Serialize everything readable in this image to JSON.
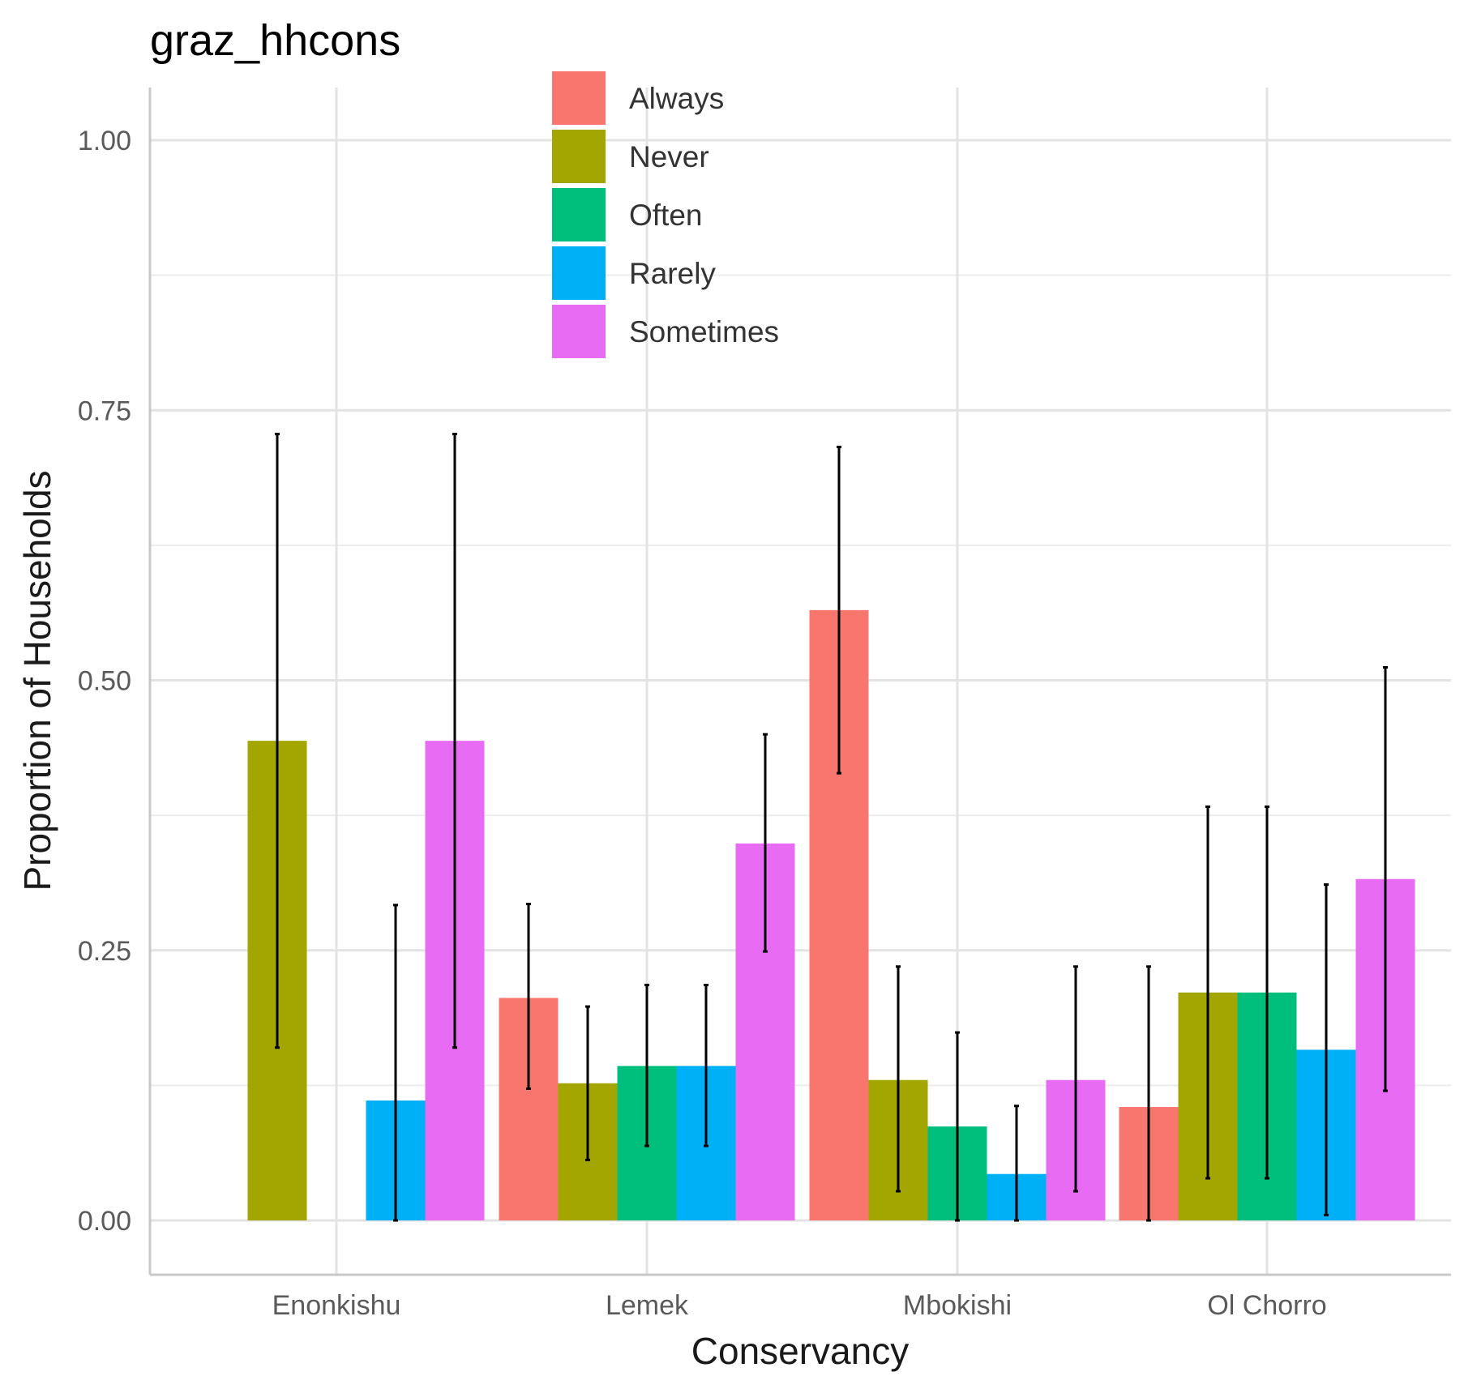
{
  "chart_data": {
    "type": "bar",
    "title": "graz_hhcons",
    "xlabel": "Conservancy",
    "ylabel": "Proportion of Households",
    "categories": [
      "Enonkishu",
      "Lemek",
      "Mbokishi",
      "Ol Chorro"
    ],
    "yticks": [
      "0.00",
      "0.25",
      "0.50",
      "0.75",
      "1.00"
    ],
    "ylim": [
      -0.05,
      1.05
    ],
    "grid": true,
    "legend_position": "top-center",
    "series": [
      {
        "name": "Always",
        "color": "#F8766D",
        "values": [
          null,
          0.206,
          0.565,
          0.105
        ],
        "error_low": [
          null,
          0.122,
          0.414,
          0.0
        ],
        "error_high": [
          null,
          0.293,
          0.716,
          0.235
        ]
      },
      {
        "name": "Never",
        "color": "#A3A500",
        "values": [
          0.444,
          0.127,
          0.13,
          0.211
        ],
        "error_low": [
          0.16,
          0.056,
          0.027,
          0.039
        ],
        "error_high": [
          0.728,
          0.198,
          0.235,
          0.383
        ]
      },
      {
        "name": "Often",
        "color": "#00BF7D",
        "values": [
          null,
          0.143,
          0.087,
          0.211
        ],
        "error_low": [
          null,
          0.069,
          0.0,
          0.039
        ],
        "error_high": [
          null,
          0.218,
          0.174,
          0.383
        ]
      },
      {
        "name": "Rarely",
        "color": "#00B0F6",
        "values": [
          0.111,
          0.143,
          0.043,
          0.158
        ],
        "error_low": [
          0.0,
          0.069,
          0.0,
          0.005
        ],
        "error_high": [
          0.292,
          0.218,
          0.106,
          0.311
        ]
      },
      {
        "name": "Sometimes",
        "color": "#E76BF3",
        "values": [
          0.444,
          0.349,
          0.13,
          0.316
        ],
        "error_low": [
          0.16,
          0.249,
          0.027,
          0.12
        ],
        "error_high": [
          0.728,
          0.45,
          0.235,
          0.512
        ]
      }
    ]
  }
}
